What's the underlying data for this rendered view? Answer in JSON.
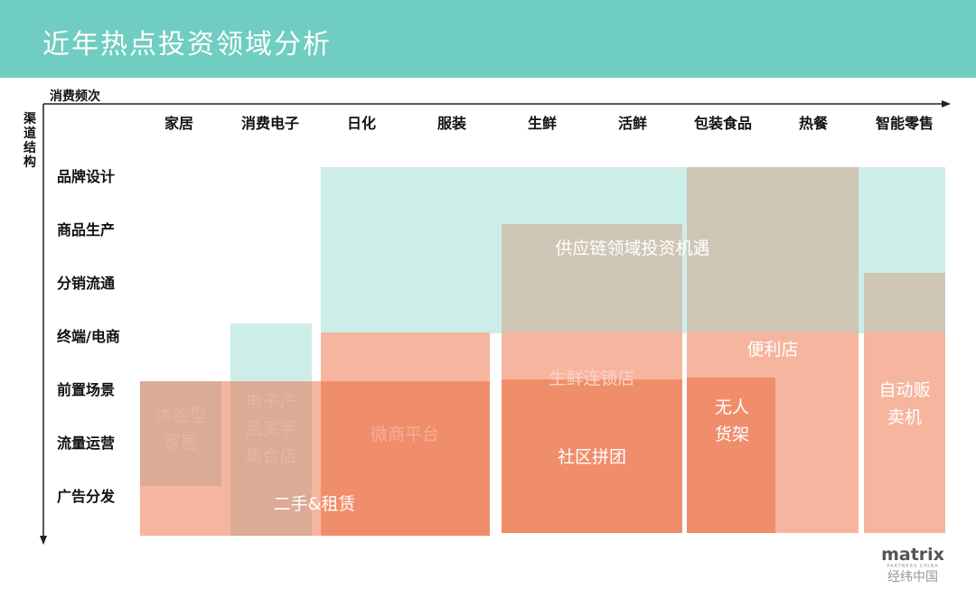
{
  "title": "近年热点投资领域分析",
  "x_axis_label": "消费频次",
  "y_axis_label": "渠道结构",
  "columns": [
    "家居",
    "消费电子",
    "日化",
    "服装",
    "生鲜",
    "活鲜",
    "包装食品",
    "热餐",
    "智能零售"
  ],
  "rows": [
    "品牌设计",
    "商品生产",
    "分销流通",
    "终端/电商",
    "前置场景",
    "流量运营",
    "广告分发"
  ],
  "areas": {
    "supply_chain": "供应链领域投资机遇",
    "convenience": "便利店",
    "fresh_chain": "生鲜连锁店",
    "vending": "自动贩卖机",
    "unmanned": "无人货架",
    "community": "社区拼团",
    "wechat": "微商平台",
    "secondhand": "二手&租赁",
    "experience": "体验型家居",
    "electronics": "电子产品买手集合店"
  },
  "colors": {
    "header": "#6fcdc1",
    "teal": "#cdeee8",
    "tan": "#cfc6b6",
    "salmon_light": "#f6b59f",
    "salmon_dark": "#f08e6c",
    "muted": "#dcab95"
  },
  "logo": {
    "brand": "matrix",
    "sub": "PARTNERS CHINA",
    "cn": "经纬中国"
  }
}
